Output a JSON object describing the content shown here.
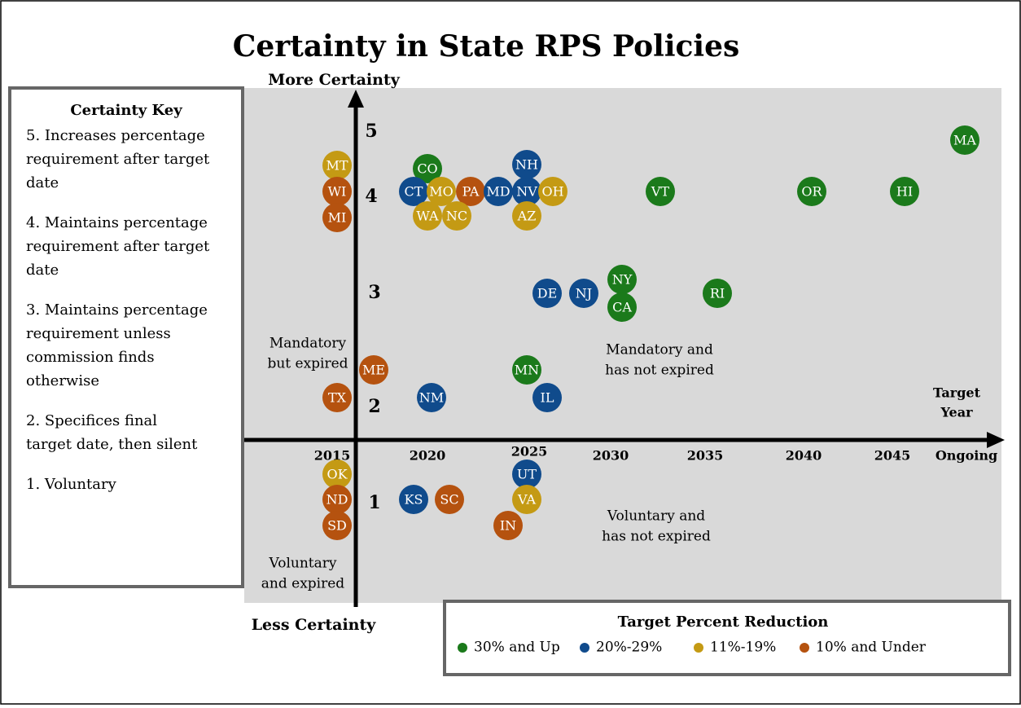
{
  "title": "Certainty in State RPS Policies",
  "axis_labels": {
    "top": "More Certainty",
    "bottom": "Less Certainty",
    "x_title": [
      "Target",
      "Year"
    ]
  },
  "x_ticks": [
    "2015",
    "2020",
    "2025",
    "2030",
    "2035",
    "2040",
    "2045",
    "Ongoing"
  ],
  "y_ticks": [
    "5",
    "4",
    "3",
    "2",
    "1"
  ],
  "annotations": [
    [
      "Mandatory",
      "but expired"
    ],
    [
      "Mandatory and",
      "has not expired"
    ],
    [
      "Voluntary and",
      "has not expired"
    ],
    [
      "Voluntary",
      "and expired"
    ]
  ],
  "key": {
    "title": "Certainty Key",
    "items": [
      [
        "5. Increases percentage",
        "requirement after target",
        "date"
      ],
      [
        "4. Maintains percentage",
        "requirement after target",
        "date"
      ],
      [
        "3. Maintains percentage",
        "requirement unless",
        "commission finds",
        "otherwise"
      ],
      [
        "2. Specifices final",
        " target date, then silent"
      ],
      [
        "1. Voluntary"
      ]
    ]
  },
  "legend": {
    "title": "Target Percent Reduction",
    "items": [
      {
        "label": "30% and Up",
        "color": "#1b7a1b"
      },
      {
        "label": "20%-29%",
        "color": "#104b8c"
      },
      {
        "label": "11%-19%",
        "color": "#c49a14"
      },
      {
        "label": "10% and Under",
        "color": "#b5520f"
      }
    ]
  },
  "nodes": [
    {
      "label": "MA",
      "group": 0
    },
    {
      "label": "MT",
      "group": 2
    },
    {
      "label": "WI",
      "group": 3
    },
    {
      "label": "MI",
      "group": 3
    },
    {
      "label": "CO",
      "group": 0
    },
    {
      "label": "CT",
      "group": 1
    },
    {
      "label": "MO",
      "group": 2
    },
    {
      "label": "PA",
      "group": 3
    },
    {
      "label": "MD",
      "group": 1
    },
    {
      "label": "NV",
      "group": 1
    },
    {
      "label": "OH",
      "group": 2
    },
    {
      "label": "NH",
      "group": 1
    },
    {
      "label": "WA",
      "group": 2
    },
    {
      "label": "NC",
      "group": 2
    },
    {
      "label": "AZ",
      "group": 2
    },
    {
      "label": "VT",
      "group": 0
    },
    {
      "label": "OR",
      "group": 0
    },
    {
      "label": "HI",
      "group": 0
    },
    {
      "label": "DE",
      "group": 1
    },
    {
      "label": "NJ",
      "group": 1
    },
    {
      "label": "NY",
      "group": 0
    },
    {
      "label": "CA",
      "group": 0
    },
    {
      "label": "RI",
      "group": 0
    },
    {
      "label": "ME",
      "group": 3
    },
    {
      "label": "MN",
      "group": 0
    },
    {
      "label": "TX",
      "group": 3
    },
    {
      "label": "NM",
      "group": 1
    },
    {
      "label": "IL",
      "group": 1
    },
    {
      "label": "UT",
      "group": 1
    },
    {
      "label": "OK",
      "group": 2
    },
    {
      "label": "ND",
      "group": 3
    },
    {
      "label": "SD",
      "group": 3
    },
    {
      "label": "KS",
      "group": 1
    },
    {
      "label": "SC",
      "group": 3
    },
    {
      "label": "VA",
      "group": 2
    },
    {
      "label": "IN",
      "group": 3
    }
  ]
}
